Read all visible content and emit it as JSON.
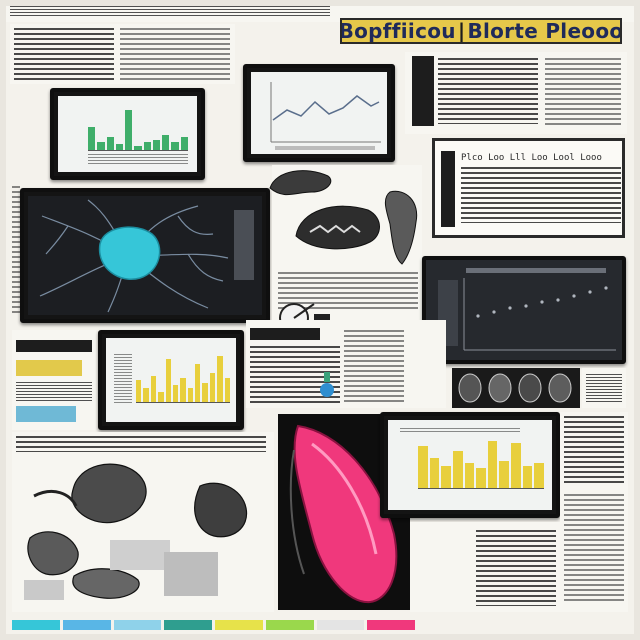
{
  "header": {
    "title_left": "Bopffiicou",
    "title_sep": "|",
    "title_right": "Blorte Pleooo"
  },
  "panels": {
    "text_panel_caption": "Plco Loo Lll Loo Lool Looo",
    "dark_chart_caption": "",
    "neuron_caption": ""
  },
  "colors": {
    "title_bg": "#e6c84a",
    "title_text": "#1f2a5a",
    "bar_green": "#3fae6a",
    "bar_yellow": "#e8cf3c",
    "neuron_cyan": "#36c6d8",
    "organ_pink": "#f0387c"
  },
  "bar_chart_green": {
    "values": [
      0.55,
      0.2,
      0.3,
      0.15,
      0.95,
      0.1,
      0.2,
      0.25,
      0.35,
      0.2,
      0.3
    ]
  },
  "bar_chart_yellow_1": {
    "values": [
      0.45,
      0.3,
      0.55,
      0.2,
      0.9,
      0.35,
      0.5,
      0.3,
      0.8,
      0.4,
      0.6,
      0.95,
      0.5
    ]
  },
  "bar_chart_yellow_2": {
    "values": [
      0.85,
      0.6,
      0.45,
      0.75,
      0.5,
      0.4,
      0.95,
      0.55,
      0.9,
      0.45,
      0.5
    ]
  },
  "bottom_swatches": [
    "#36c6d8",
    "#59b6e6",
    "#8fd2ea",
    "#2f9e8f",
    "#e7e24a",
    "#9ad84c",
    "#e4e4e4",
    "#f0387c"
  ]
}
